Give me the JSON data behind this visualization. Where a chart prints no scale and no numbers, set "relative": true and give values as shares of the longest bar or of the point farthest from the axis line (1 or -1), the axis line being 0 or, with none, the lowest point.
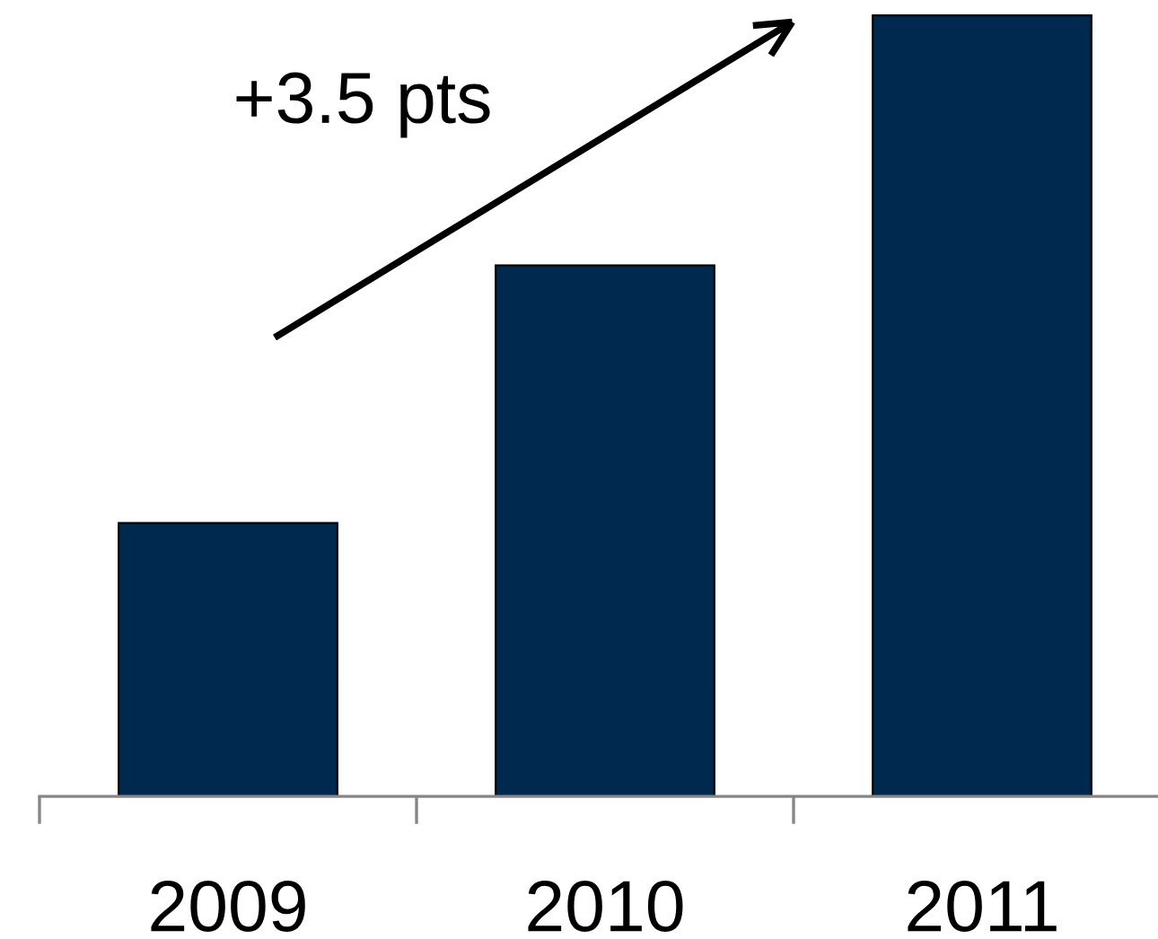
{
  "chart_data": {
    "type": "bar",
    "categories": [
      "2009",
      "2010",
      "2011"
    ],
    "values": [
      0.35,
      0.68,
      1
    ],
    "color": "#00294f",
    "relative": true,
    "annotations": [
      "+3.5 pts"
    ]
  }
}
